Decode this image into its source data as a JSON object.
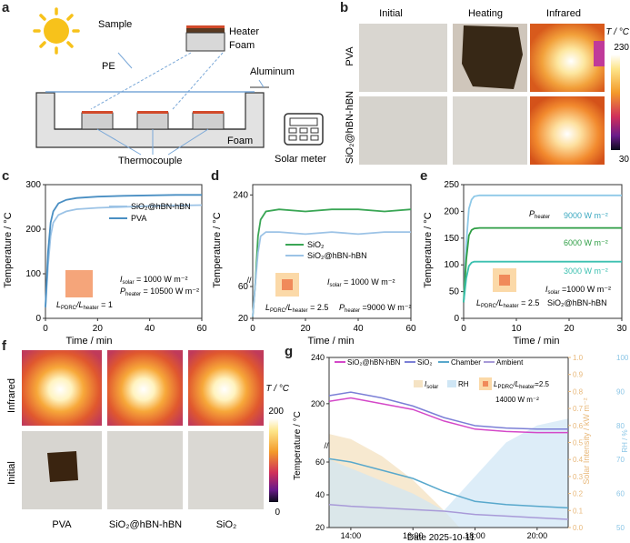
{
  "panel_labels": {
    "a": "a",
    "b": "b",
    "c": "c",
    "d": "d",
    "e": "e",
    "f": "f",
    "g": "g"
  },
  "panel_a": {
    "sample": "Sample",
    "heater": "Heater",
    "foam_top": "Foam",
    "pe": "PE",
    "aluminum": "Aluminum",
    "foam_bottom": "Foam",
    "thermocouple": "Thermocouple",
    "solar_meter": "Solar meter"
  },
  "panel_b": {
    "col_initial": "Initial",
    "col_heating": "Heating",
    "col_infrared": "Infrared",
    "row_pva": "PVA",
    "row_sio2": "SiO₂@hBN-hBN",
    "scale_title": "T / °C",
    "scale_max": "230",
    "scale_min": "30",
    "colors": {
      "burn": "#2a1a08",
      "ir_hot": "#ffffff",
      "ir_mid": "#f2a03a",
      "ir_low": "#c8471a"
    }
  },
  "panel_f": {
    "row_infrared": "Infrared",
    "row_initial": "Initial",
    "samples": [
      "PVA",
      "SiO₂@hBN-hBN",
      "SiO₂"
    ],
    "scale_title": "T / °C",
    "scale_max": "200",
    "scale_min": "0"
  },
  "chart_data": [
    {
      "id": "c",
      "type": "line",
      "xlabel": "Time / min",
      "ylabel": "Temperature / °C",
      "xlim": [
        0,
        60
      ],
      "ylim": [
        0,
        300
      ],
      "xticks": [
        "0",
        "20",
        "40",
        "60"
      ],
      "yticks": [
        "0",
        "100",
        "200",
        "300"
      ],
      "series": [
        {
          "name": "SiO₂@hBN-hBN",
          "color": "#9cc3e6",
          "x": [
            0,
            1,
            2,
            3,
            5,
            8,
            12,
            20,
            30,
            40,
            50,
            60
          ],
          "y": [
            25,
            120,
            185,
            215,
            232,
            240,
            245,
            248,
            250,
            252,
            253,
            254
          ]
        },
        {
          "name": "PVA",
          "color": "#4a8fc3",
          "x": [
            0,
            1,
            2,
            3,
            5,
            8,
            12,
            20,
            30,
            40,
            50,
            60
          ],
          "y": [
            25,
            150,
            215,
            240,
            258,
            266,
            270,
            273,
            275,
            276,
            277,
            277
          ]
        }
      ],
      "annotations": {
        "isolar": "I",
        "isolar_sub": "solar",
        "isolar_val": " = 1000 W m⁻²",
        "pheater": "P",
        "pheater_sub": "heater",
        "pheater_val": " = 10500 W m⁻²",
        "ratio": "L",
        "ratio_sub": "PDRC",
        "ratio_mid": "/L",
        "ratio_sub2": "heater",
        "ratio_val": " = 1"
      }
    },
    {
      "id": "d",
      "type": "line",
      "xlabel": "Time / min",
      "ylabel": "Temperature / °C",
      "xlim": [
        0,
        60
      ],
      "broken_axis": true,
      "xticks": [
        "0",
        "20",
        "40",
        "60"
      ],
      "yticks": [
        "20",
        "60",
        "240"
      ],
      "series": [
        {
          "name": "SiO₂",
          "color": "#3aa655",
          "x": [
            0,
            1,
            2,
            3,
            5,
            10,
            20,
            30,
            40,
            50,
            60
          ],
          "y": [
            22,
            120,
            220,
            228,
            232,
            233,
            232,
            233,
            233,
            232,
            233
          ]
        },
        {
          "name": "SiO₂@hBN-hBN",
          "color": "#9cc3e6",
          "x": [
            0,
            1,
            2,
            3,
            5,
            10,
            20,
            30,
            40,
            50,
            60
          ],
          "y": [
            22,
            110,
            212,
            220,
            222,
            222,
            221,
            222,
            221,
            222,
            222
          ]
        }
      ],
      "annotations": {
        "isolar": "I",
        "isolar_sub": "solar",
        "isolar_val": " = 1000 W m⁻²",
        "pheater": "P",
        "pheater_sub": "heater",
        "pheater_val": " =9000 W m⁻²",
        "ratio": "L",
        "ratio_sub": "PDRC",
        "ratio_mid": "/L",
        "ratio_sub2": "heater",
        "ratio_val": " = 2.5"
      }
    },
    {
      "id": "e",
      "type": "line",
      "xlabel": "Time / min",
      "ylabel": "Temperature / °C",
      "xlim": [
        0,
        30
      ],
      "ylim": [
        0,
        250
      ],
      "xticks": [
        "0",
        "10",
        "20",
        "30"
      ],
      "yticks": [
        "0",
        "50",
        "100",
        "150",
        "200",
        "250"
      ],
      "series": [
        {
          "name": "9000 W m⁻²",
          "color": "#8ec9e8",
          "x": [
            0,
            0.5,
            1,
            1.5,
            2,
            3,
            5,
            10,
            15,
            20,
            25,
            30
          ],
          "y": [
            30,
            140,
            205,
            222,
            228,
            230,
            230,
            230,
            230,
            230,
            230,
            230
          ]
        },
        {
          "name": "6000 W m⁻²",
          "color": "#2e9e44",
          "x": [
            0,
            0.5,
            1,
            1.5,
            2,
            3,
            5,
            10,
            15,
            20,
            25,
            30
          ],
          "y": [
            30,
            110,
            155,
            165,
            168,
            169,
            169,
            169,
            169,
            169,
            169,
            169
          ]
        },
        {
          "name": "3000 W m⁻²",
          "color": "#3cc0b0",
          "x": [
            0,
            0.5,
            1,
            1.5,
            2,
            3,
            5,
            10,
            15,
            20,
            25,
            30
          ],
          "y": [
            30,
            75,
            98,
            104,
            106,
            106,
            106,
            106,
            106,
            106,
            106,
            106
          ]
        }
      ],
      "annotations": {
        "pheater": "P",
        "pheater_sub": "heater",
        "isolar": "I",
        "isolar_sub": "solar",
        "isolar_val": " =1000 W m⁻²",
        "ratio": "L",
        "ratio_sub": "PDRC",
        "ratio_mid": "/L",
        "ratio_sub2": "heater",
        "ratio_val": " = 2.5",
        "material": "SiO₂@hBN-hBN"
      }
    },
    {
      "id": "g",
      "type": "line",
      "xlabel": "Date 2025-10-11",
      "ylabel": "Temperature / °C",
      "ylabel_right1": "Solar Intensity / kW m⁻²",
      "ylabel_right2": "RH / %",
      "broken_axis": true,
      "xticks": [
        "14:00",
        "16:00",
        "18:00",
        "20:00"
      ],
      "yticks": [
        "20",
        "40",
        "60",
        "200",
        "240"
      ],
      "yticks_right1": [
        "0.0",
        "0.1",
        "0.2",
        "0.3",
        "0.4",
        "0.5",
        "0.6",
        "0.7",
        "0.8",
        "0.9",
        "1.0"
      ],
      "yticks_right2": [
        "50",
        "60",
        "70",
        "80",
        "90",
        "100"
      ],
      "legend": [
        "SiO₂@hBN-hBN",
        "SiO₂",
        "Chamber",
        "Ambient",
        "I",
        "solar",
        "RH"
      ],
      "annotation": {
        "ratio": "L",
        "ratio_sub": "PDRC",
        "ratio_mid": "/L",
        "ratio_sub2": "heater",
        "ratio_val": "=2.5",
        "heater_power": "14000 W m⁻²"
      },
      "series": [
        {
          "name": "SiO₂@hBN-hBN",
          "color": "#d448c8",
          "x": [
            13.3,
            14,
            15,
            16,
            17,
            18,
            19,
            20,
            21
          ],
          "y": [
            202,
            205,
            200,
            195,
            185,
            178,
            176,
            175,
            175
          ]
        },
        {
          "name": "SiO₂",
          "color": "#7b7fd6",
          "x": [
            13.3,
            14,
            15,
            16,
            17,
            18,
            19,
            20,
            21
          ],
          "y": [
            207,
            210,
            205,
            198,
            188,
            181,
            179,
            178,
            178
          ]
        },
        {
          "name": "Chamber",
          "color": "#58a8cc",
          "x": [
            13.3,
            14,
            15,
            16,
            17,
            18,
            19,
            20,
            21
          ],
          "y": [
            62,
            60,
            55,
            50,
            42,
            36,
            34,
            33,
            32
          ]
        },
        {
          "name": "Ambient",
          "color": "#a89ad8",
          "x": [
            13.3,
            14,
            15,
            16,
            17,
            18,
            19,
            20,
            21
          ],
          "y": [
            34,
            33,
            32,
            31,
            30,
            28,
            27,
            26,
            25
          ]
        }
      ],
      "solar_intensity": {
        "x": [
          13.3,
          14,
          15,
          16,
          17,
          17.5
        ],
        "y": [
          0.55,
          0.52,
          0.42,
          0.28,
          0.1,
          0.0
        ]
      },
      "rh": {
        "x": [
          13.3,
          16,
          17,
          18,
          19,
          20,
          21
        ],
        "y": [
          70,
          60,
          55,
          65,
          75,
          80,
          82
        ]
      }
    }
  ]
}
